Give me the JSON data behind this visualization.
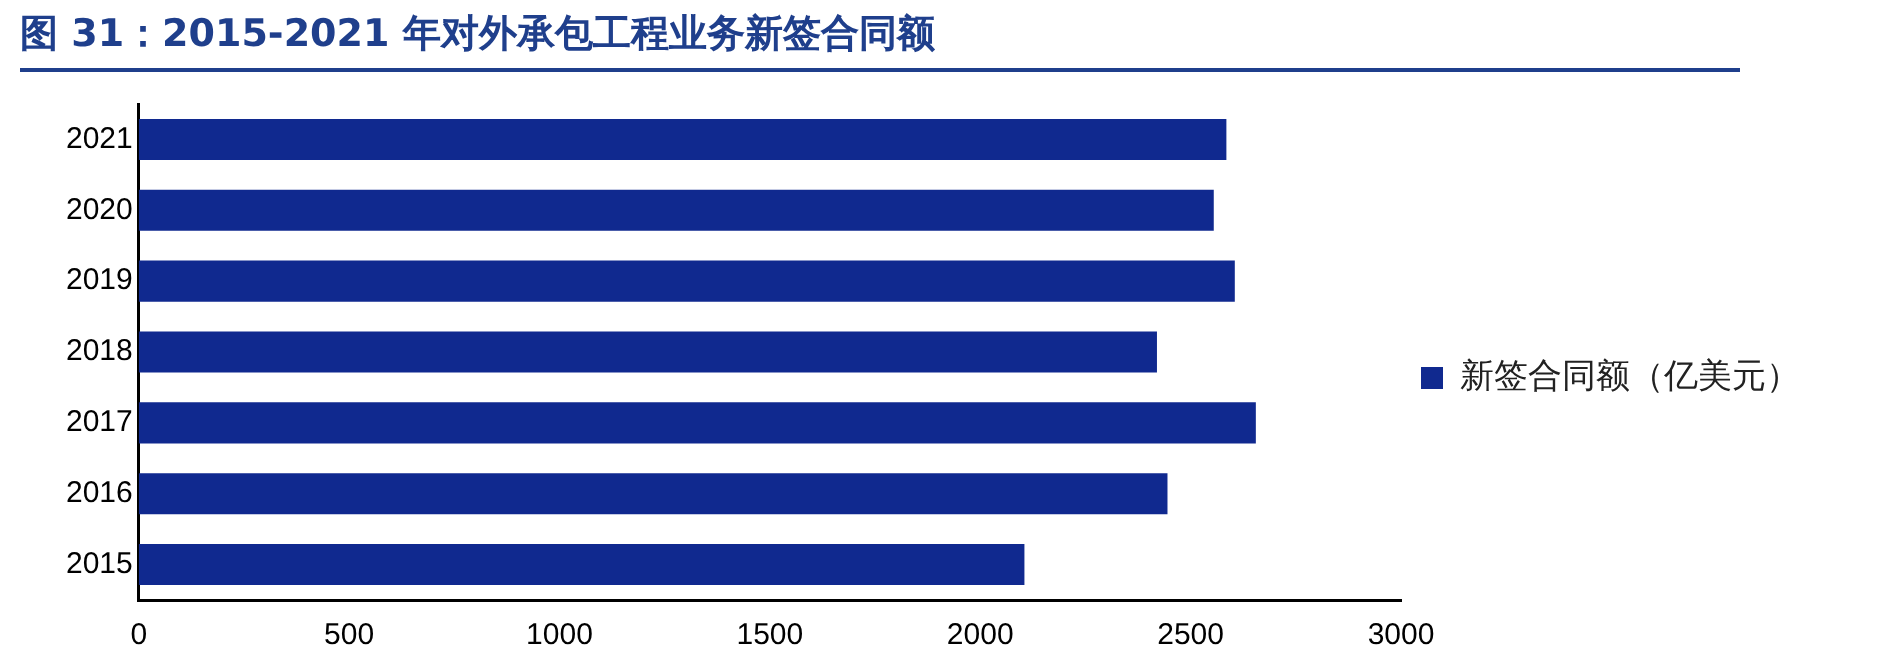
{
  "chart_data": {
    "type": "bar",
    "orientation": "horizontal",
    "title": "图 31：2015-2021 年对外承包工程业务新签合同额",
    "categories": [
      "2021",
      "2020",
      "2019",
      "2018",
      "2017",
      "2016",
      "2015"
    ],
    "series": [
      {
        "name": "新签合同额（亿美元）",
        "color": "#10298f",
        "values": [
          2585,
          2555,
          2605,
          2420,
          2655,
          2445,
          2105
        ]
      }
    ],
    "xlim": [
      0,
      3000
    ],
    "xticks": [
      0,
      500,
      1000,
      1500,
      2000,
      2500,
      3000
    ],
    "grid": false,
    "legend": "right"
  }
}
